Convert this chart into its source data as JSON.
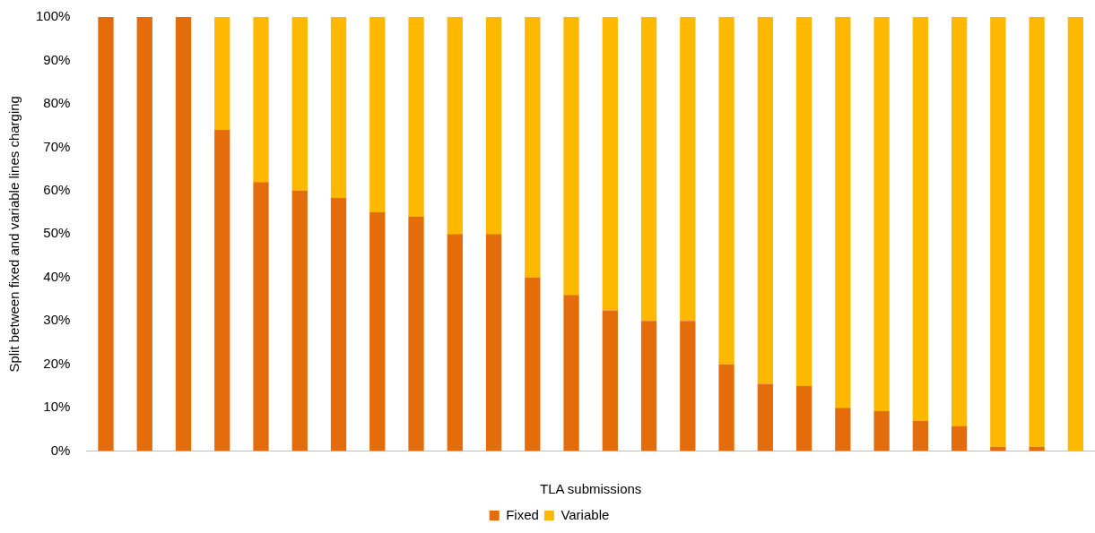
{
  "chart_data": {
    "type": "bar",
    "xlabel": "TLA submissions",
    "ylabel": "Split between fixed and variable lines charging",
    "stacked": true,
    "legend": "bottom",
    "categories": [
      null,
      null,
      null,
      null,
      null,
      null,
      null,
      null,
      null,
      null,
      null,
      null,
      null,
      null,
      null,
      null,
      null,
      null,
      null,
      null,
      null,
      null,
      null,
      null,
      null,
      null
    ],
    "series": [
      {
        "name": "Fixed",
        "color": "#e46c0a",
        "values": [
          100,
          100,
          100,
          74,
          62,
          60,
          58.3,
          55,
          54,
          50,
          50,
          40,
          36,
          32.4,
          30,
          30,
          20,
          15.5,
          15,
          10,
          9.2,
          7,
          5.8,
          1,
          1,
          0
        ]
      },
      {
        "name": "Variable",
        "color": "#ffb800",
        "values": [
          0,
          0,
          0,
          26,
          38,
          40,
          41.7,
          45,
          46,
          50,
          50,
          60,
          64,
          67.6,
          70,
          70,
          80,
          84.5,
          85,
          90,
          90.8,
          93,
          94.2,
          99,
          99,
          100
        ]
      }
    ],
    "ylim": [
      0,
      100
    ],
    "yticks": [
      {
        "value": 0,
        "label": "0%"
      },
      {
        "value": 10,
        "label": "10%"
      },
      {
        "value": 20,
        "label": "20%"
      },
      {
        "value": 30,
        "label": "30%"
      },
      {
        "value": 40,
        "label": "40%"
      },
      {
        "value": 50,
        "label": "50%"
      },
      {
        "value": 60,
        "label": "60%"
      },
      {
        "value": 70,
        "label": "70%"
      },
      {
        "value": 80,
        "label": "80%"
      },
      {
        "value": 90,
        "label": "90%"
      },
      {
        "value": 100,
        "label": "100%"
      }
    ]
  }
}
